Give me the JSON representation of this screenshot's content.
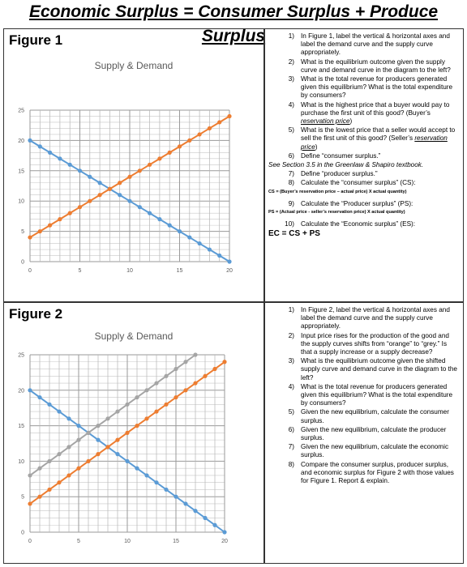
{
  "page_title": "Economic Surplus = Consumer Surplus + Produce Surplus",
  "figure1": {
    "label": "Figure 1",
    "chart_data": {
      "type": "line",
      "title": "Supply & Demand",
      "xlabel": "",
      "ylabel": "",
      "xlim": [
        0,
        20
      ],
      "ylim": [
        0,
        25
      ],
      "x_ticks": [
        0,
        5,
        10,
        15,
        20
      ],
      "y_ticks": [
        0,
        5,
        10,
        15,
        20,
        25
      ],
      "grid": true,
      "series": [
        {
          "color": "#5b9bd5",
          "x": [
            0,
            1,
            2,
            3,
            4,
            5,
            6,
            7,
            8,
            9,
            10,
            11,
            12,
            13,
            14,
            15,
            16,
            17,
            18,
            19,
            20
          ],
          "y": [
            20,
            19,
            18,
            17,
            16,
            15,
            14,
            13,
            12,
            11,
            10,
            9,
            8,
            7,
            6,
            5,
            4,
            3,
            2,
            1,
            0
          ]
        },
        {
          "color": "#ed7d31",
          "x": [
            0,
            1,
            2,
            3,
            4,
            5,
            6,
            7,
            8,
            9,
            10,
            11,
            12,
            13,
            14,
            15,
            16,
            17,
            18,
            19,
            20
          ],
          "y": [
            4,
            5,
            6,
            7,
            8,
            9,
            10,
            11,
            12,
            13,
            14,
            15,
            16,
            17,
            18,
            19,
            20,
            21,
            22,
            23,
            24
          ]
        }
      ]
    },
    "questions_before_note": [
      {
        "num": "1)",
        "text": "In Figure 1, label the vertical & horizontal axes and label the demand curve and the supply curve appropriately."
      },
      {
        "num": "2)",
        "text": "What is the equilibrium outcome given the supply curve and demand curve in the diagram to the left?"
      },
      {
        "num": "3)",
        "text": "What is the total revenue for producers generated given this equilibrium? What is the total expenditure by consumers?"
      },
      {
        "num": "4)",
        "text_pre": "What is the highest price that a buyer would pay to purchase the first unit of this good? (Buyer’s ",
        "text_u": "reservation price",
        "text_post": ")"
      },
      {
        "num": "5)",
        "text_pre": "What is the lowest price that a seller would accept to sell the first unit of this good? (Seller’s ",
        "text_u": "reservation price",
        "text_post": ")"
      },
      {
        "num": "6)",
        "text": "Define “consumer surplus.”"
      }
    ],
    "note": "See Section 3.5 in the Greenlaw & Shapiro textbook.",
    "q7": {
      "num": "7)",
      "text": "Define “producer surplus.”"
    },
    "q8": {
      "num": "8)",
      "text": "Calculate the “consumer surplus” (CS):"
    },
    "cs_formula": "CS = (Buyer’s reservation price – actual price) X actual quantity)",
    "q9": {
      "num": "9)",
      "text": "Calculate the “Producer surplus” (PS):"
    },
    "ps_formula": "PS = (Actual price - seller’s reservation price) X actual quantity)",
    "q10": {
      "num": "10)",
      "text": "Calculate the “Economic surplus” (ES):"
    },
    "ec_formula": "EC = CS + PS"
  },
  "figure2": {
    "label": "Figure 2",
    "chart_data": {
      "type": "line",
      "title": "Supply & Demand",
      "xlabel": "",
      "ylabel": "",
      "xlim": [
        0,
        20
      ],
      "ylim": [
        0,
        25
      ],
      "x_ticks": [
        0,
        5,
        10,
        15,
        20
      ],
      "y_ticks": [
        0,
        5,
        10,
        15,
        20,
        25
      ],
      "grid": true,
      "series": [
        {
          "color": "#5b9bd5",
          "x": [
            0,
            1,
            2,
            3,
            4,
            5,
            6,
            7,
            8,
            9,
            10,
            11,
            12,
            13,
            14,
            15,
            16,
            17,
            18,
            19,
            20
          ],
          "y": [
            20,
            19,
            18,
            17,
            16,
            15,
            14,
            13,
            12,
            11,
            10,
            9,
            8,
            7,
            6,
            5,
            4,
            3,
            2,
            1,
            0
          ]
        },
        {
          "color": "#ed7d31",
          "x": [
            0,
            1,
            2,
            3,
            4,
            5,
            6,
            7,
            8,
            9,
            10,
            11,
            12,
            13,
            14,
            15,
            16,
            17,
            18,
            19,
            20
          ],
          "y": [
            4,
            5,
            6,
            7,
            8,
            9,
            10,
            11,
            12,
            13,
            14,
            15,
            16,
            17,
            18,
            19,
            20,
            21,
            22,
            23,
            24
          ]
        },
        {
          "color": "#a5a5a5",
          "x": [
            0,
            1,
            2,
            3,
            4,
            5,
            6,
            7,
            8,
            9,
            10,
            11,
            12,
            13,
            14,
            15,
            16,
            17
          ],
          "y": [
            8,
            9,
            10,
            11,
            12,
            13,
            14,
            15,
            16,
            17,
            18,
            19,
            20,
            21,
            22,
            23,
            24,
            25
          ]
        }
      ]
    },
    "questions": [
      {
        "num": "1)",
        "text": "In Figure 2, label the vertical & horizontal axes and label the demand curve and the supply curve appropriately."
      },
      {
        "num": "2)",
        "text": "Input price rises for the production of the good and the supply curves shifts from “orange” to “grey.” Is that a supply increase or a supply decrease?"
      },
      {
        "num": "3)",
        "text": "What is the equilibrium outcome given the shifted supply curve and demand curve in the diagram to the left?"
      },
      {
        "num": "4)",
        "text": "What is the total revenue for producers generated given this equilibrium? What is the total expenditure by consumers?"
      },
      {
        "num": "5)",
        "text": "Given the new equilibrium, calculate the consumer surplus."
      },
      {
        "num": "6)",
        "text": "Given the new equilibrium, calculate the producer surplus."
      },
      {
        "num": "7)",
        "text": "Given the new equilibrium, calculate the economic surplus."
      },
      {
        "num": "8)",
        "text": "Compare the consumer surplus, producer surplus, and economic surplus for Figure 2 with those values for Figure 1. Report & explain."
      }
    ]
  }
}
